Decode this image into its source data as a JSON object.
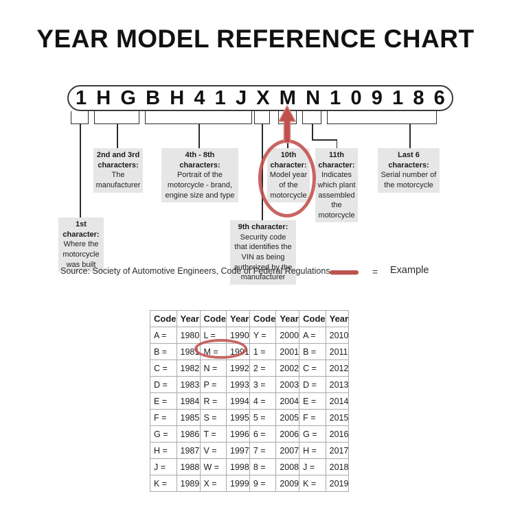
{
  "title": "YEAR MODEL REFERENCE CHART",
  "vin": {
    "characters": [
      "1",
      "H",
      "G",
      "B",
      "H",
      "4",
      "1",
      "J",
      "X",
      "M",
      "N",
      "1",
      "0",
      "9",
      "1",
      "8",
      "6"
    ]
  },
  "callouts": {
    "c1": {
      "heading": "1st\ncharacter:",
      "body": "Where the\nmotorcycle\nwas built"
    },
    "c23": {
      "heading": "2nd and 3rd\ncharacters:",
      "body": "The\nmanufacturer"
    },
    "c48": {
      "heading": "4th - 8th\ncharacters:",
      "body": "Portrait of the\nmotorcycle - brand,\nengine size and type"
    },
    "c9": {
      "heading": "9th character:",
      "body": "Security code\nthat identifies the\nVIN as being\nauthorized by the\nmanufacturer"
    },
    "c10": {
      "heading": "10th\ncharacter:",
      "body": "Model year\nof the\nmotorcycle"
    },
    "c11": {
      "heading": "11th\ncharacter:",
      "body": "Indicates\nwhich plant\nassembled\nthe\nmotorcycle"
    },
    "c6": {
      "heading": "Last 6\ncharacters:",
      "body": "Serial number of\nthe motorcycle"
    }
  },
  "source": {
    "text": "Source:  Society of Automotive Engineers, Code of Federal Regulations"
  },
  "legend": {
    "equals": "=",
    "label": "Example"
  },
  "table": {
    "headers": [
      "Code",
      "Year",
      "Code",
      "Year",
      "Code",
      "Year",
      "Code",
      "Year"
    ],
    "rows": [
      [
        "A =",
        "1980",
        "L =",
        "1990",
        "Y =",
        "2000",
        "A =",
        "2010"
      ],
      [
        "B =",
        "1981",
        "M =",
        "1991",
        "1 =",
        "2001",
        "B =",
        "2011"
      ],
      [
        "C =",
        "1982",
        "N =",
        "1992",
        "2 =",
        "2002",
        "C =",
        "2012"
      ],
      [
        "D =",
        "1983",
        "P =",
        "1993",
        "3 =",
        "2003",
        "D =",
        "2013"
      ],
      [
        "E =",
        "1984",
        "R =",
        "1994",
        "4 =",
        "2004",
        "E =",
        "2014"
      ],
      [
        "F =",
        "1985",
        "S =",
        "1995",
        "5 =",
        "2005",
        "F =",
        "2015"
      ],
      [
        "G =",
        "1986",
        "T =",
        "1996",
        "6 =",
        "2006",
        "G =",
        "2016"
      ],
      [
        "H =",
        "1987",
        "V =",
        "1997",
        "7 =",
        "2007",
        "H =",
        "2017"
      ],
      [
        "J =",
        "1988",
        "W =",
        "1998",
        "8 =",
        "2008",
        "J =",
        "2018"
      ],
      [
        "K =",
        "1989",
        "X =",
        "1999",
        "9 =",
        "2009",
        "K =",
        "2019"
      ]
    ],
    "highlighted_cells": [
      "M =",
      "1991"
    ]
  },
  "colors": {
    "accent_red": "#c0504d",
    "callout_gray": "#e6e6e6",
    "table_border": "#a9a9a9",
    "text": "#1b1b1b"
  }
}
